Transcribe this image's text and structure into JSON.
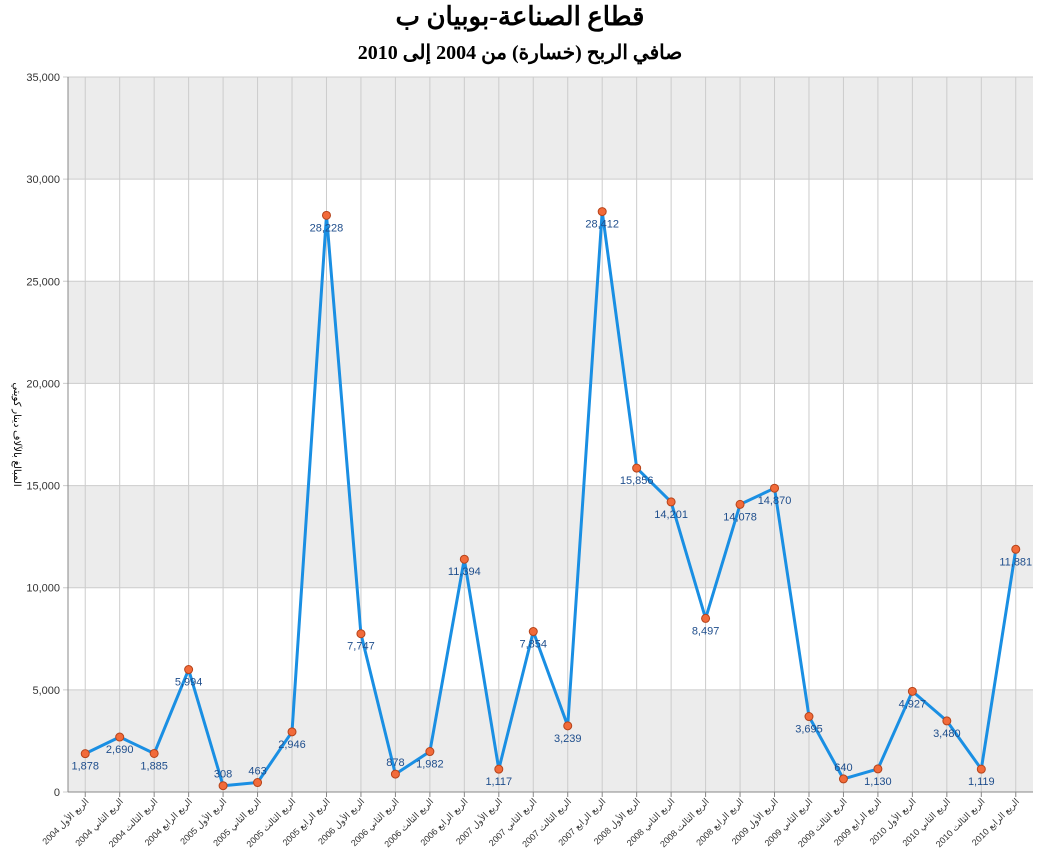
{
  "chart_data": {
    "type": "line",
    "title": "قطاع الصناعة-بوبيان ب",
    "subtitle": "صافي الربح (خسارة) من 2004 إلى 2010",
    "ylabel": "المبالغ بالآلاف دينار كويتي",
    "xlabel": "",
    "ylim": [
      0,
      35000
    ],
    "yticks": [
      "0",
      "5,000",
      "10,000",
      "15,000",
      "20,000",
      "25,000",
      "30,000",
      "35,000"
    ],
    "grid": true,
    "legend": "none",
    "colors": {
      "line": "#1a8fe3",
      "marker_fill": "#f26b3a",
      "marker_stroke": "#b5431a",
      "band": "#ececec",
      "grid": "#cccccc",
      "label": "#1f4e8c"
    },
    "categories": [
      "الربع الأول 2004",
      "الربع الثاني 2004",
      "الربع الثالث 2004",
      "الربع الرابع 2004",
      "الربع الأول 2005",
      "الربع الثاني 2005",
      "الربع الثالث 2005",
      "الربع الرابع 2005",
      "الربع الأول 2006",
      "الربع الثاني 2006",
      "الربع الثالث 2006",
      "الربع الرابع 2006",
      "الربع الأول 2007",
      "الربع الثاني 2007",
      "الربع الثالث 2007",
      "الربع الرابع 2007",
      "الربع الأول 2008",
      "الربع الثاني 2008",
      "الربع الثالث 2008",
      "الربع الرابع 2008",
      "الربع الأول 2009",
      "الربع الثاني 2009",
      "الربع الثالث 2009",
      "الربع الرابع 2009",
      "الربع الأول 2010",
      "الربع الثاني 2010",
      "الربع الثالث 2010",
      "الربع الرابع 2010"
    ],
    "values": [
      1878,
      2690,
      1885,
      5994,
      308,
      463,
      2946,
      28228,
      7747,
      878,
      1982,
      11394,
      1117,
      7854,
      3239,
      28412,
      15856,
      14201,
      8497,
      14078,
      14870,
      3695,
      640,
      1130,
      4927,
      3480,
      1119,
      11881
    ],
    "data_labels": [
      "1,878",
      "2,690",
      "1,885",
      "5,994",
      "308",
      "463",
      "2,946",
      "28,228",
      "7,747",
      "878",
      "1,982",
      "11,394",
      "1,117",
      "7,854",
      "3,239",
      "28,412",
      "15,856",
      "14,201",
      "8,497",
      "14,078",
      "14,870",
      "3,695",
      "640",
      "1,130",
      "4,927",
      "3,480",
      "1,119",
      "11,881"
    ]
  }
}
